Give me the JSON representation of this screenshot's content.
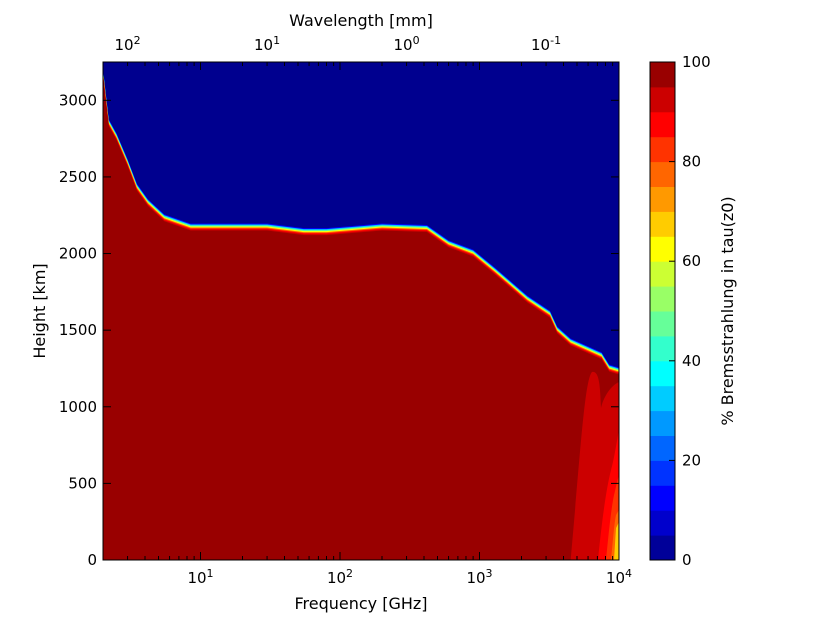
{
  "chart_data": {
    "type": "heatmap",
    "title": "",
    "xlabel": "Frequency [GHz]",
    "x_scale": "log",
    "xlim": [
      2,
      10000
    ],
    "x_ticks": [
      {
        "value": 10,
        "base": "10",
        "exp": "1"
      },
      {
        "value": 100,
        "base": "10",
        "exp": "2"
      },
      {
        "value": 1000,
        "base": "10",
        "exp": "3"
      },
      {
        "value": 10000,
        "base": "10",
        "exp": "4"
      }
    ],
    "top_xlabel": "Wavelength [mm]",
    "top_x_ticks": [
      {
        "value": 100,
        "base": "10",
        "exp": "2"
      },
      {
        "value": 10,
        "base": "10",
        "exp": "1"
      },
      {
        "value": 1,
        "base": "10",
        "exp": "0"
      },
      {
        "value": 0.1,
        "base": "10",
        "exp": "-1"
      }
    ],
    "ylabel": "Height [km]",
    "ylim": [
      0,
      3250
    ],
    "y_ticks": [
      0,
      500,
      1000,
      1500,
      2000,
      2500,
      3000
    ],
    "colorbar": {
      "label": "% Bremsstrahlung in tau(z0)",
      "range": [
        0,
        100
      ],
      "ticks": [
        0,
        20,
        40,
        60,
        80,
        100
      ],
      "levels": 20,
      "colormap": "jet"
    },
    "boundary_series": {
      "name": "",
      "description_value": "upper edge of 100% region",
      "x": [
        2,
        2.2,
        2.5,
        3,
        3.5,
        4.2,
        5.5,
        8.5,
        30,
        55,
        80,
        200,
        420,
        600,
        900,
        1300,
        2200,
        3200,
        3600,
        4500,
        7500,
        8500,
        10000
      ],
      "y": [
        3180,
        2850,
        2760,
        2590,
        2430,
        2330,
        2230,
        2170,
        2170,
        2140,
        2140,
        2170,
        2160,
        2060,
        2000,
        1880,
        1700,
        1600,
        1500,
        1420,
        1330,
        1250,
        1230
      ]
    },
    "lower_right_feature": {
      "x_range": [
        4500,
        10000
      ],
      "y_range": [
        0,
        1250
      ],
      "min_value_percent": 75
    }
  }
}
